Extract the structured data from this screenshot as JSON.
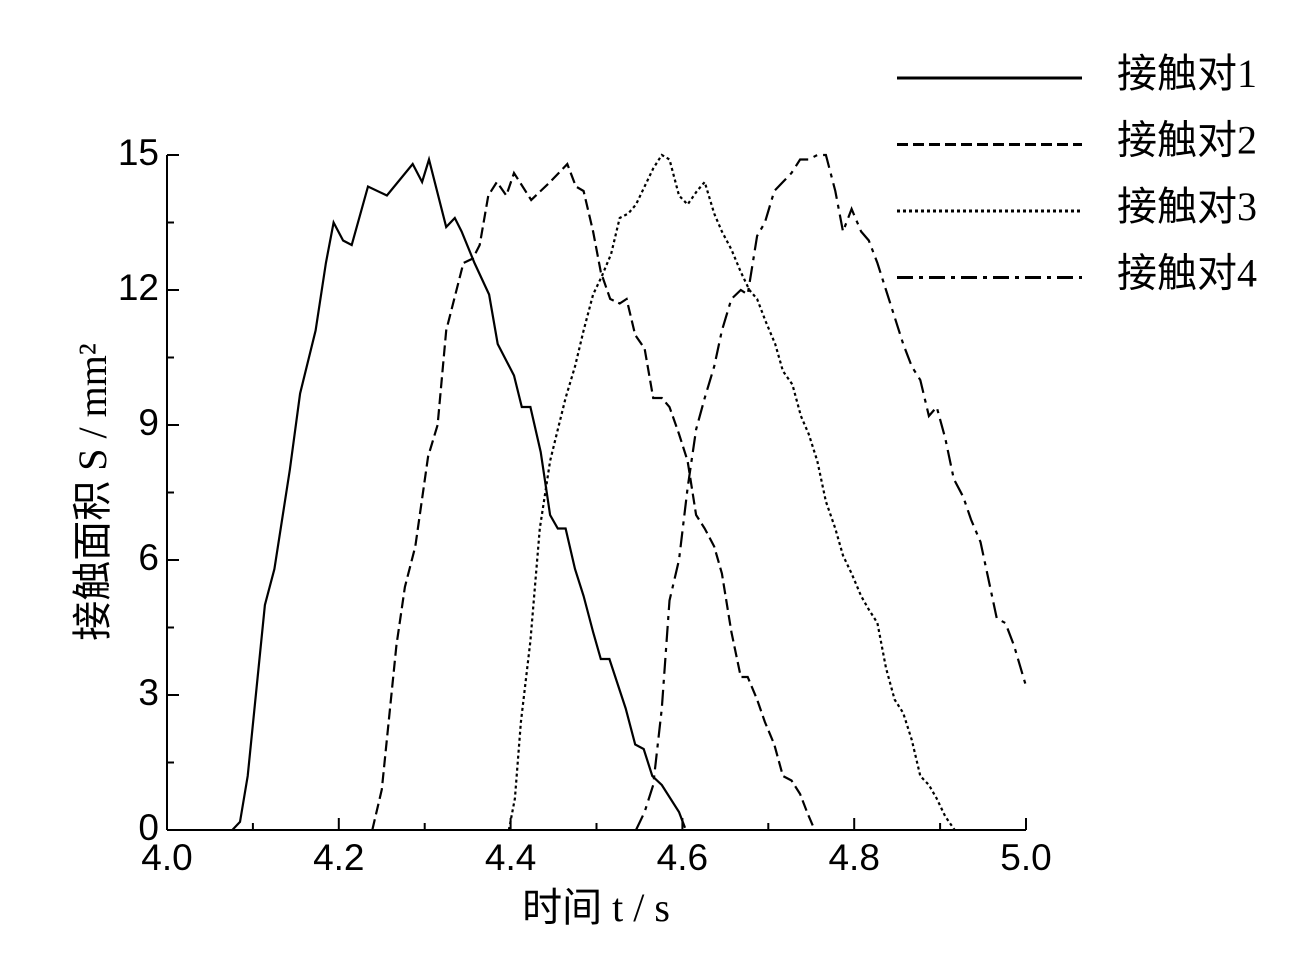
{
  "chart_data": {
    "type": "line",
    "xlabel": "时间 t / s",
    "ylabel": "接触面积 S / mm²",
    "xlim": [
      4.0,
      5.0
    ],
    "ylim": [
      0,
      15
    ],
    "xticks": [
      {
        "value": 4,
        "label": "4.0"
      },
      {
        "value": 4.2,
        "label": "4.2"
      },
      {
        "value": 4.4,
        "label": "4.4"
      },
      {
        "value": 4.6,
        "label": "4.6"
      },
      {
        "value": 4.8,
        "label": "4.8"
      },
      {
        "value": 5,
        "label": "5.0"
      }
    ],
    "yticks": [
      0,
      3,
      6,
      9,
      12,
      15
    ],
    "xminorticks": [
      4.1,
      4.3,
      4.5,
      4.7,
      4.9
    ],
    "yminorticks": [
      1.5,
      4.5,
      7.5,
      10.5,
      13.5
    ],
    "legend": "upper right",
    "series": [
      {
        "name": "接触对1",
        "color": "#000000",
        "linestyle": "solid",
        "x": [
          4.076,
          4.085,
          4.094,
          4.114,
          4.125,
          4.143,
          4.155,
          4.173,
          4.185,
          4.194,
          4.205,
          4.215,
          4.234,
          4.256,
          4.286,
          4.297,
          4.305,
          4.325,
          4.335,
          4.343,
          4.358,
          4.375,
          4.385,
          4.404,
          4.413,
          4.423,
          4.435,
          4.446,
          4.455,
          4.464,
          4.475,
          4.485,
          4.496,
          4.505,
          4.515,
          4.534,
          4.545,
          4.555,
          4.565,
          4.576,
          4.596,
          4.603
        ],
        "values": [
          0,
          0.18,
          1.2,
          5.0,
          5.8,
          8,
          9.7,
          11.1,
          12.6,
          13.5,
          13.1,
          13.0,
          14.3,
          14.1,
          14.8,
          14.4,
          14.9,
          13.4,
          13.6,
          13.3,
          12.6,
          11.9,
          10.8,
          10.1,
          9.4,
          9.4,
          8.4,
          7.0,
          6.7,
          6.7,
          5.8,
          5.2,
          4.4,
          3.8,
          3.8,
          2.7,
          1.9,
          1.8,
          1.2,
          1.0,
          0.4,
          0.05
        ]
      },
      {
        "name": "接触对2",
        "color": "#000000",
        "linestyle": "dashed",
        "x": [
          4.239,
          4.25,
          4.267,
          4.277,
          4.289,
          4.304,
          4.315,
          4.325,
          4.345,
          4.356,
          4.364,
          4.374,
          4.384,
          4.395,
          4.404,
          4.424,
          4.446,
          4.466,
          4.476,
          4.485,
          4.496,
          4.505,
          4.516,
          4.527,
          4.535,
          4.545,
          4.556,
          4.566,
          4.576,
          4.585,
          4.596,
          4.606,
          4.616,
          4.626,
          4.637,
          4.646,
          4.657,
          4.668,
          4.676,
          4.687,
          4.696,
          4.707,
          4.717,
          4.727,
          4.737,
          4.745,
          4.754
        ],
        "values": [
          0,
          0.9,
          4.1,
          5.4,
          6.3,
          8.3,
          9.0,
          11.1,
          12.6,
          12.7,
          13.0,
          14.1,
          14.4,
          14.1,
          14.6,
          14.0,
          14.4,
          14.8,
          14.3,
          14.2,
          13.3,
          12.4,
          11.8,
          11.7,
          11.8,
          11.0,
          10.7,
          9.6,
          9.6,
          9.4,
          8.8,
          8.2,
          7.0,
          6.7,
          6.3,
          5.7,
          4.4,
          3.4,
          3.4,
          2.9,
          2.4,
          1.9,
          1.2,
          1.1,
          0.8,
          0.4,
          0
        ]
      },
      {
        "name": "接触对3",
        "color": "#000000",
        "linestyle": "dotted",
        "x": [
          4.398,
          4.405,
          4.412,
          4.423,
          4.434,
          4.446,
          4.455,
          4.464,
          4.475,
          4.485,
          4.496,
          4.506,
          4.517,
          4.527,
          4.537,
          4.546,
          4.556,
          4.566,
          4.576,
          4.585,
          4.596,
          4.606,
          4.617,
          4.626,
          4.637,
          4.646,
          4.657,
          4.668,
          4.678,
          4.687,
          4.697,
          4.708,
          4.717,
          4.728,
          4.738,
          4.747,
          4.757,
          4.767,
          4.778,
          4.787,
          4.797,
          4.808,
          4.817,
          4.827,
          4.837,
          4.847,
          4.857,
          4.867,
          4.877,
          4.887,
          4.896,
          4.906,
          4.917
        ],
        "values": [
          0,
          0.7,
          2.4,
          4.2,
          6.7,
          8.2,
          8.9,
          9.6,
          10.3,
          11.1,
          11.9,
          12.3,
          12.8,
          13.6,
          13.7,
          13.9,
          14.3,
          14.7,
          15.0,
          14.9,
          14.1,
          13.9,
          14.2,
          14.4,
          13.7,
          13.3,
          12.9,
          12.4,
          12.0,
          11.8,
          11.3,
          10.8,
          10.2,
          9.9,
          9.2,
          8.8,
          8.2,
          7.3,
          6.7,
          6.1,
          5.7,
          5.2,
          4.9,
          4.6,
          3.6,
          2.9,
          2.6,
          2.0,
          1.2,
          1.0,
          0.7,
          0.3,
          0
        ]
      },
      {
        "name": "接触对4",
        "color": "#000000",
        "linestyle": "dashdot",
        "x": [
          4.546,
          4.556,
          4.566,
          4.576,
          4.585,
          4.596,
          4.606,
          4.616,
          4.626,
          4.637,
          4.646,
          4.657,
          4.668,
          4.676,
          4.687,
          4.696,
          4.707,
          4.717,
          4.727,
          4.737,
          4.747,
          4.757,
          4.767,
          4.778,
          4.787,
          4.797,
          4.808,
          4.817,
          4.827,
          4.837,
          4.847,
          4.857,
          4.867,
          4.877,
          4.887,
          4.896,
          4.906,
          4.916,
          4.927,
          4.936,
          4.947,
          4.956,
          4.966,
          4.976,
          4.986,
          5.0
        ],
        "values": [
          0,
          0.4,
          1.0,
          2.7,
          5.1,
          6.0,
          7.6,
          8.9,
          9.6,
          10.3,
          11.1,
          11.8,
          12.0,
          11.9,
          13.2,
          13.5,
          14.2,
          14.4,
          14.6,
          14.9,
          14.9,
          15.0,
          15.0,
          14.2,
          13.3,
          13.8,
          13.3,
          13.1,
          12.6,
          12.0,
          11.4,
          10.8,
          10.3,
          10.0,
          9.2,
          9.4,
          8.7,
          7.8,
          7.4,
          6.9,
          6.4,
          5.6,
          4.7,
          4.6,
          4.1,
          3.2
        ]
      }
    ]
  }
}
